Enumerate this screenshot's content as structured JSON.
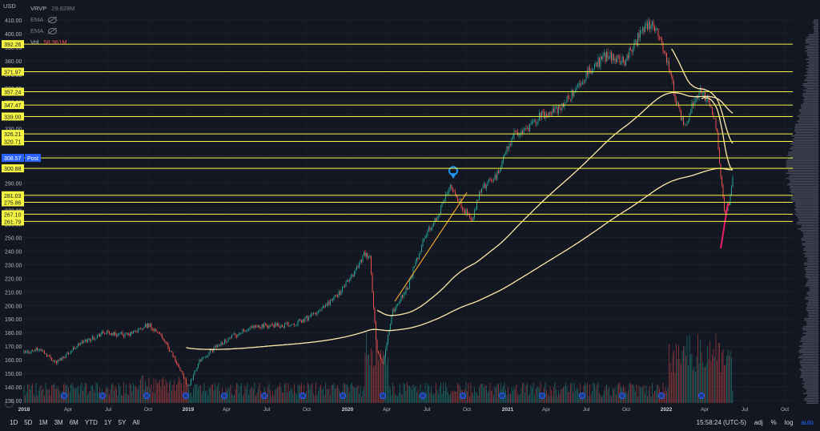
{
  "currency": "USD",
  "legend": {
    "vrvp_label": "VRVP",
    "vrvp_value": "29.828M",
    "ema1_label": "EMA",
    "ema2_label": "EMA",
    "vol_label": "Vol",
    "vol_value": "58.961M"
  },
  "price_axis": {
    "ticks": [
      "410.00",
      "400.00",
      "390.00",
      "380.00",
      "370.00",
      "360.00",
      "350.00",
      "340.00",
      "330.00",
      "320.00",
      "310.00",
      "300.00",
      "290.00",
      "280.00",
      "270.00",
      "260.00",
      "250.00",
      "240.00",
      "230.00",
      "220.00",
      "210.00",
      "200.00",
      "190.00",
      "180.00",
      "170.00",
      "160.00",
      "150.00",
      "140.00",
      "130.00"
    ]
  },
  "time_axis": {
    "labels": [
      "2018",
      "Apr",
      "Jul",
      "Oct",
      "2019",
      "Apr",
      "Jul",
      "Oct",
      "2020",
      "Apr",
      "Jul",
      "Oct",
      "2021",
      "Apr",
      "Jul",
      "Oct",
      "2022",
      "Apr",
      "Jul",
      "Oct"
    ]
  },
  "level_labels": [
    "392.26",
    "371.97",
    "357.24",
    "347.47",
    "339.00",
    "326.21",
    "320.71",
    "308.57",
    "300.88",
    "281.03",
    "275.86",
    "267.10",
    "261.79"
  ],
  "post_label": "Post",
  "current_price": "308.57",
  "bottom_bar": {
    "ranges": [
      "1D",
      "5D",
      "1M",
      "3M",
      "6M",
      "YTD",
      "1Y",
      "5Y",
      "All"
    ],
    "time": "15:58:24 (UTC-5)",
    "adj": "adj",
    "percent": "%",
    "log": "log",
    "auto": "auto"
  },
  "chart_data": {
    "type": "candlestick",
    "horizontal_levels": [
      392.26,
      371.97,
      357.24,
      347.47,
      339.0,
      326.21,
      320.71,
      308.57,
      300.88,
      281.03,
      275.86,
      267.1,
      261.79
    ],
    "price_range": [
      125,
      415
    ],
    "colors": {
      "up": "#26a69a",
      "down": "#ef5350",
      "level": "#f5f542",
      "ema": "#ffe9a8",
      "trend": "#f0a030",
      "arrow": "#e91e63"
    }
  }
}
